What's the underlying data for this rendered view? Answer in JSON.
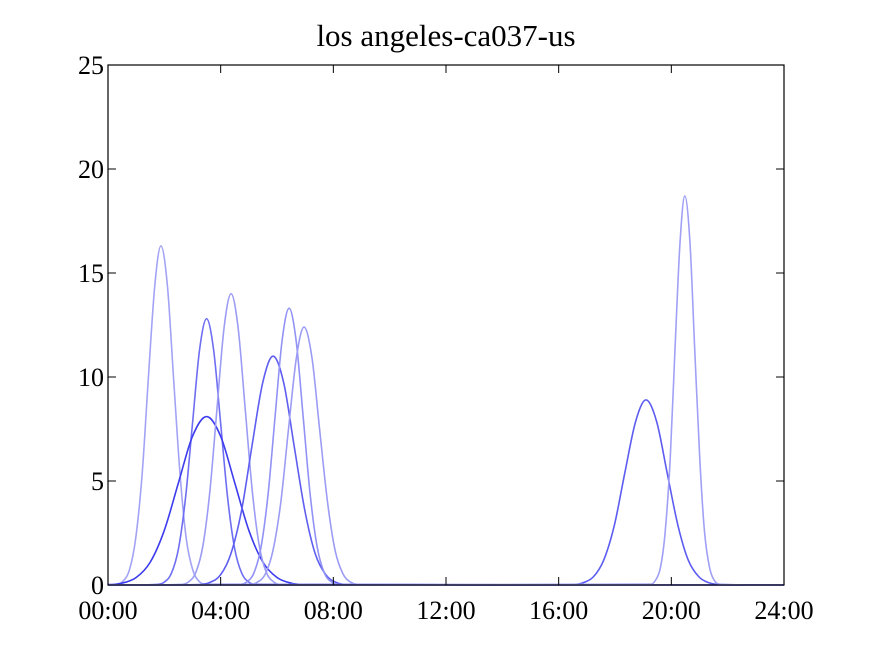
{
  "chart_data": {
    "type": "line",
    "title": "los angeles-ca037-us",
    "xlim": [
      0,
      24
    ],
    "xticks": [
      {
        "value": 0,
        "label": "00:00"
      },
      {
        "value": 4,
        "label": "04:00"
      },
      {
        "value": 8,
        "label": "08:00"
      },
      {
        "value": 12,
        "label": "12:00"
      },
      {
        "value": 16,
        "label": "16:00"
      },
      {
        "value": 20,
        "label": "20:00"
      },
      {
        "value": 24,
        "label": "24:00"
      }
    ],
    "ylim": [
      0,
      25
    ],
    "yticks": [
      0,
      5,
      10,
      15,
      20,
      25
    ],
    "series": [
      {
        "color": "#a3a3f6",
        "x": [
          0,
          0.31,
          0.53,
          0.76,
          0.98,
          1.21,
          1.43,
          1.66,
          1.88,
          2.11,
          2.33,
          2.56,
          2.78,
          3.01,
          3.23,
          3.46,
          24
        ],
        "values": [
          0,
          0.04,
          0.18,
          0.72,
          2.21,
          5.29,
          9.89,
          14.38,
          16.3,
          14.38,
          9.89,
          5.29,
          2.21,
          0.72,
          0.18,
          0.04,
          0
        ]
      },
      {
        "color": "#6e6ef2",
        "x": [
          0,
          1.75,
          2,
          2.25,
          2.5,
          2.75,
          3,
          3.25,
          3.5,
          3.75,
          4,
          4.25,
          4.5,
          4.75,
          5,
          5.25,
          24
        ],
        "values": [
          0,
          0.03,
          0.14,
          0.56,
          1.73,
          4.16,
          7.76,
          11.3,
          12.8,
          11.3,
          7.76,
          4.16,
          1.73,
          0.56,
          0.14,
          0.03,
          0
        ]
      },
      {
        "color": "#3c3cee",
        "x": [
          0,
          0.5,
          1,
          1.5,
          2,
          2.5,
          3,
          3.5,
          4,
          4.5,
          5,
          5.5,
          6,
          6.5,
          7,
          24
        ],
        "values": [
          0.02,
          0.09,
          0.36,
          1.1,
          2.63,
          4.91,
          7.15,
          8.1,
          7.15,
          4.91,
          2.63,
          1.1,
          0.36,
          0.09,
          0.02,
          0
        ]
      },
      {
        "color": "#9c9cf5",
        "x": [
          0,
          2.62,
          2.87,
          3.12,
          3.37,
          3.62,
          3.87,
          4.12,
          4.37,
          4.62,
          4.87,
          5.12,
          5.37,
          5.62,
          5.87,
          6.12,
          24
        ],
        "values": [
          0,
          0.03,
          0.16,
          0.61,
          1.89,
          4.55,
          8.49,
          12.36,
          14.0,
          12.36,
          8.49,
          4.55,
          1.89,
          0.61,
          0.16,
          0.03,
          0
        ]
      },
      {
        "color": "#5e5ef0",
        "x": [
          0,
          3.24,
          3.61,
          3.99,
          4.36,
          4.74,
          5.11,
          5.49,
          5.86,
          6.24,
          6.61,
          6.99,
          7.36,
          7.74,
          8.11,
          8.49,
          24
        ],
        "values": [
          0,
          0.02,
          0.12,
          0.48,
          1.49,
          3.57,
          6.67,
          9.71,
          11.0,
          9.71,
          6.67,
          3.57,
          1.49,
          0.48,
          0.12,
          0.02,
          0
        ]
      },
      {
        "color": "#9292f5",
        "x": [
          0,
          4.68,
          4.93,
          5.18,
          5.43,
          5.68,
          5.93,
          6.18,
          6.43,
          6.68,
          6.93,
          7.18,
          7.43,
          7.68,
          7.93,
          8.18,
          24
        ],
        "values": [
          0,
          0.03,
          0.15,
          0.58,
          1.8,
          4.32,
          8.07,
          11.74,
          13.3,
          11.74,
          8.07,
          4.32,
          1.8,
          0.58,
          0.15,
          0.03,
          0
        ]
      },
      {
        "color": "#9c9cf5",
        "x": [
          0,
          5.04,
          5.31,
          5.59,
          5.86,
          6.14,
          6.41,
          6.69,
          6.96,
          7.24,
          7.51,
          7.79,
          8.06,
          8.34,
          8.61,
          8.89,
          24
        ],
        "values": [
          0,
          0.03,
          0.14,
          0.54,
          1.68,
          4.03,
          7.52,
          10.94,
          12.4,
          10.94,
          7.52,
          4.03,
          1.68,
          0.54,
          0.14,
          0.03,
          0
        ]
      },
      {
        "color": "#5c5cf0",
        "x": [
          0,
          16.48,
          16.85,
          17.23,
          17.6,
          17.98,
          18.35,
          18.73,
          19.1,
          19.48,
          19.85,
          20.23,
          20.6,
          20.98,
          21.35,
          21.73,
          24
        ],
        "values": [
          0,
          0.02,
          0.1,
          0.39,
          1.2,
          2.89,
          5.4,
          7.85,
          8.9,
          7.85,
          5.4,
          2.89,
          1.2,
          0.39,
          0.1,
          0.02,
          0
        ]
      },
      {
        "color": "#a0a0f6",
        "x": [
          0,
          19.27,
          19.43,
          19.61,
          19.78,
          19.96,
          20.13,
          20.31,
          20.48,
          20.66,
          20.83,
          21.01,
          21.18,
          21.36,
          21.53,
          21.71,
          24
        ],
        "values": [
          0,
          0.04,
          0.21,
          0.82,
          2.53,
          6.07,
          11.34,
          16.5,
          18.7,
          16.5,
          11.34,
          6.07,
          2.53,
          0.82,
          0.21,
          0.04,
          0
        ]
      }
    ]
  }
}
